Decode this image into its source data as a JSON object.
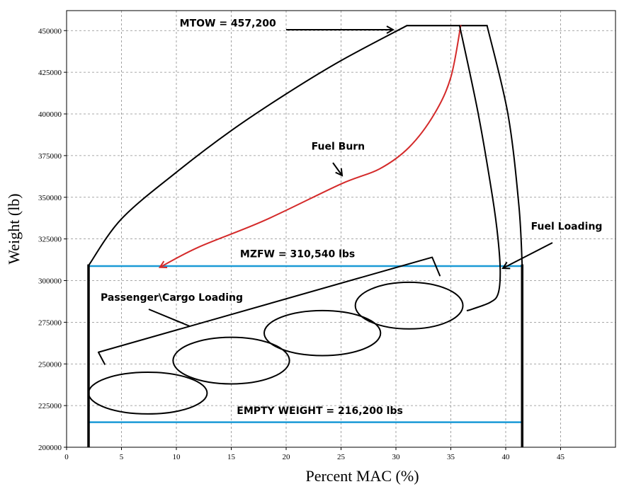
{
  "chart_data": {
    "type": "line",
    "title": "",
    "xlabel": "Percent MAC (%)",
    "ylabel": "Weight (lb)",
    "xlim": [
      0,
      50
    ],
    "ylim": [
      200000,
      462000
    ],
    "x_ticks": [
      0,
      5,
      10,
      15,
      20,
      25,
      30,
      35,
      40,
      45
    ],
    "y_ticks": [
      200000,
      225000,
      250000,
      275000,
      300000,
      325000,
      350000,
      375000,
      400000,
      425000,
      450000
    ],
    "grid": true,
    "colors": {
      "envelope": "#000000",
      "fuel_burn": "#d42a2a",
      "limit_lines": "#1a9ad6"
    },
    "series": [
      {
        "role": "envelope-left",
        "x": [
          2,
          5,
          10,
          15,
          20,
          25,
          31
        ],
        "y": [
          309000,
          337000,
          365000,
          390000,
          412000,
          432000,
          453000
        ]
      },
      {
        "role": "envelope-top",
        "x": [
          31,
          38.3
        ],
        "y": [
          453000,
          453000
        ]
      },
      {
        "role": "envelope-right",
        "x": [
          38.3,
          40.2,
          41.2,
          41.5
        ],
        "y": [
          453000,
          400000,
          345000,
          309000
        ]
      },
      {
        "role": "fuel-burn",
        "x": [
          35.9,
          35,
          33.5,
          31.2,
          28.5,
          25,
          18,
          12,
          8.5
        ],
        "y": [
          453000,
          422000,
          400000,
          380000,
          367000,
          358000,
          336000,
          320000,
          308000
        ]
      },
      {
        "role": "fuel-loading",
        "x": [
          35.8,
          37.5,
          38.8,
          39.3,
          39.5,
          39.3,
          38.6,
          37,
          36.5
        ],
        "y": [
          453000,
          400000,
          350000,
          325000,
          305000,
          292000,
          287000,
          283000,
          282000
        ]
      },
      {
        "role": "passenger-cargo-loading",
        "x": [
          2.9,
          33.3,
          34
        ],
        "y": [
          257000,
          314000,
          303000
        ]
      }
    ],
    "horizontal_lines": [
      {
        "y": 308700,
        "x": [
          2,
          41.5
        ],
        "label": "MZFW = 310,540 lbs"
      },
      {
        "y": 215000,
        "x": [
          2,
          41.5
        ],
        "label": "EMPTY WEIGHT = 216,200 lbs"
      }
    ],
    "ellipses": [
      {
        "cx": 7.4,
        "cy": 232500,
        "rx": 5.4,
        "ry": 12500
      },
      {
        "cx": 15,
        "cy": 252000,
        "rx": 5.3,
        "ry": 14000
      },
      {
        "cx": 23.3,
        "cy": 268500,
        "rx": 5.3,
        "ry": 13500
      },
      {
        "cx": 31.2,
        "cy": 285000,
        "rx": 4.9,
        "ry": 14000
      }
    ],
    "annotations": [
      {
        "text": "MTOW = 457,200",
        "x": 10.3,
        "y": 452500
      },
      {
        "text": "Fuel Burn",
        "x": 22.3,
        "y": 378500
      },
      {
        "text": "Fuel Loading",
        "x": 42.3,
        "y": 330500
      },
      {
        "text": "MZFW = 310,540 lbs",
        "x": 15.8,
        "y": 314000
      },
      {
        "text": "Passenger\\Cargo Loading",
        "x": 3.1,
        "y": 288000
      },
      {
        "text": "EMPTY WEIGHT = 216,200 lbs",
        "x": 15.5,
        "y": 220000
      }
    ]
  }
}
